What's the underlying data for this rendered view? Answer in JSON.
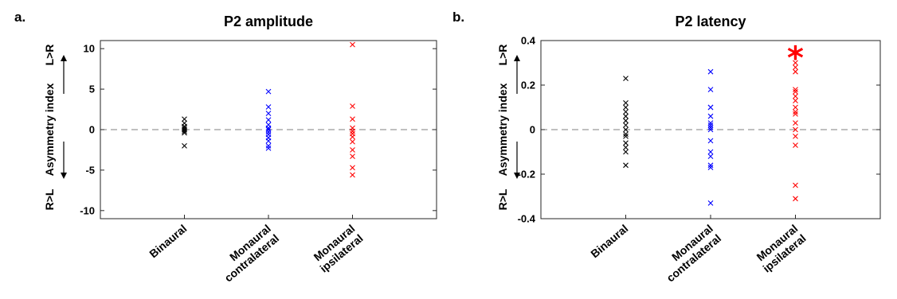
{
  "chart_data": [
    {
      "type": "scatter",
      "panel": "a.",
      "title": "P2 amplitude",
      "ylabel": "Asymmetry index",
      "ylabel_top": "L>R",
      "ylabel_bottom": "R>L",
      "ylim": [
        -11,
        11
      ],
      "yticks": [
        10,
        5,
        0,
        -5,
        -10
      ],
      "ytick_labels": [
        "10",
        "5",
        "0",
        "-5",
        "-10"
      ],
      "categories": [
        [
          "Binaural"
        ],
        [
          "Monaural",
          "contralateral"
        ],
        [
          "Monaural",
          "ipsilateral"
        ]
      ],
      "zero_line": true,
      "colors": [
        "#000000",
        "#0000ff",
        "#ff0000"
      ],
      "series": [
        {
          "values": [
            1.3,
            0.8,
            0.4,
            0.2,
            0.0,
            -0.2,
            -0.4,
            -2.0
          ]
        },
        {
          "values": [
            4.7,
            2.8,
            2.0,
            1.2,
            0.6,
            0.2,
            0.0,
            -0.3,
            -0.6,
            -1.0,
            -1.4,
            -2.0,
            -2.3
          ]
        },
        {
          "values": [
            10.5,
            2.9,
            1.3,
            0.2,
            -0.2,
            -0.5,
            -0.9,
            -1.5,
            -2.5,
            -3.3,
            -4.7,
            -5.6
          ]
        }
      ]
    },
    {
      "type": "scatter",
      "panel": "b.",
      "title": "P2 latency",
      "ylabel": "Asymmetry index",
      "ylabel_top": "L>R",
      "ylabel_bottom": "R>L",
      "ylim": [
        -0.4,
        0.4
      ],
      "yticks": [
        0.4,
        0.2,
        0,
        -0.2,
        -0.4
      ],
      "ytick_labels": [
        "0.4",
        "0.2",
        "0",
        "-0.2",
        "-0.4"
      ],
      "categories": [
        [
          "Binaural"
        ],
        [
          "Monaural",
          "contralateral"
        ],
        [
          "Monaural",
          "ipsilateral"
        ]
      ],
      "zero_line": true,
      "colors": [
        "#000000",
        "#0000ff",
        "#ff0000"
      ],
      "significance": {
        "category_index": 2,
        "symbol": "*",
        "y": 0.345,
        "color": "#ff0000"
      },
      "series": [
        {
          "values": [
            0.23,
            0.12,
            0.1,
            0.08,
            0.06,
            0.04,
            0.02,
            0.0,
            -0.02,
            -0.03,
            -0.06,
            -0.08,
            -0.1,
            -0.16
          ]
        },
        {
          "values": [
            0.26,
            0.18,
            0.1,
            0.1,
            0.06,
            0.03,
            0.02,
            0.01,
            0.0,
            -0.05,
            -0.1,
            -0.12,
            -0.16,
            -0.17,
            -0.33
          ]
        },
        {
          "values": [
            0.3,
            0.28,
            0.26,
            0.18,
            0.17,
            0.15,
            0.13,
            0.1,
            0.08,
            0.07,
            0.03,
            0.0,
            -0.03,
            -0.07,
            -0.25,
            -0.31
          ]
        }
      ]
    }
  ]
}
